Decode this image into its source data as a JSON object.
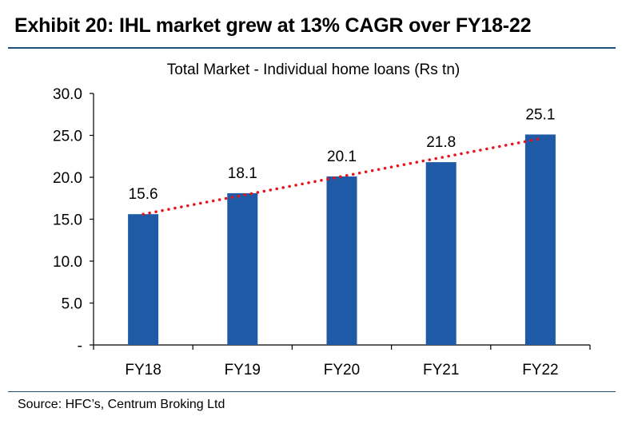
{
  "header": {
    "title": "Exhibit 20: IHL market grew at 13% CAGR over FY18-22"
  },
  "footer": {
    "source": "Source: HFC’s, Centrum Broking Ltd"
  },
  "colors": {
    "bar": "#1f5aa6",
    "trend": "#e8131b",
    "rule": "#1f4e79"
  },
  "chart_data": {
    "type": "bar",
    "title": "Total Market - Individual home loans (Rs tn)",
    "categories": [
      "FY18",
      "FY19",
      "FY20",
      "FY21",
      "FY22"
    ],
    "values": [
      15.6,
      18.1,
      20.1,
      21.8,
      25.1
    ],
    "data_labels": [
      "15.6",
      "18.1",
      "20.1",
      "21.8",
      "25.1"
    ],
    "ylim": [
      0,
      30
    ],
    "yticks": [
      {
        "value": 0,
        "label": "-"
      },
      {
        "value": 5,
        "label": "5.0"
      },
      {
        "value": 10,
        "label": "10.0"
      },
      {
        "value": 15,
        "label": "15.0"
      },
      {
        "value": 20,
        "label": "20.0"
      },
      {
        "value": 25,
        "label": "25.0"
      },
      {
        "value": 30,
        "label": "30.0"
      }
    ],
    "trendline": {
      "style": "dotted",
      "from_value": 15.6,
      "to_value": 24.6
    },
    "grid": false,
    "legend": "none",
    "xlabel": "",
    "ylabel": ""
  }
}
